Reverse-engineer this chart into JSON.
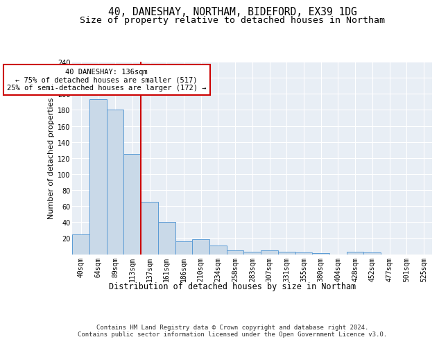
{
  "title": "40, DANESHAY, NORTHAM, BIDEFORD, EX39 1DG",
  "subtitle": "Size of property relative to detached houses in Northam",
  "xlabel": "Distribution of detached houses by size in Northam",
  "ylabel": "Number of detached properties",
  "categories": [
    "40sqm",
    "64sqm",
    "89sqm",
    "113sqm",
    "137sqm",
    "161sqm",
    "186sqm",
    "210sqm",
    "234sqm",
    "258sqm",
    "283sqm",
    "307sqm",
    "331sqm",
    "355sqm",
    "380sqm",
    "404sqm",
    "428sqm",
    "452sqm",
    "477sqm",
    "501sqm",
    "525sqm"
  ],
  "values": [
    25,
    193,
    180,
    125,
    65,
    40,
    16,
    19,
    11,
    5,
    3,
    5,
    3,
    2,
    1,
    0,
    3,
    2,
    0,
    0,
    0
  ],
  "bar_color": "#c9d9e8",
  "bar_edge_color": "#5b9bd5",
  "property_line_index": 4,
  "property_line_color": "#cc0000",
  "annotation_line1": "40 DANESHAY: 136sqm",
  "annotation_line2": "← 75% of detached houses are smaller (517)",
  "annotation_line3": "25% of semi-detached houses are larger (172) →",
  "annotation_box_color": "#ffffff",
  "annotation_box_edge_color": "#cc0000",
  "ylim": [
    0,
    240
  ],
  "yticks": [
    0,
    20,
    40,
    60,
    80,
    100,
    120,
    140,
    160,
    180,
    200,
    220,
    240
  ],
  "background_color": "#e8eef5",
  "footer_line1": "Contains HM Land Registry data © Crown copyright and database right 2024.",
  "footer_line2": "Contains public sector information licensed under the Open Government Licence v3.0.",
  "title_fontsize": 10.5,
  "subtitle_fontsize": 9.5,
  "xlabel_fontsize": 8.5,
  "ylabel_fontsize": 8,
  "tick_fontsize": 7,
  "annotation_fontsize": 7.5,
  "footer_fontsize": 6.5
}
